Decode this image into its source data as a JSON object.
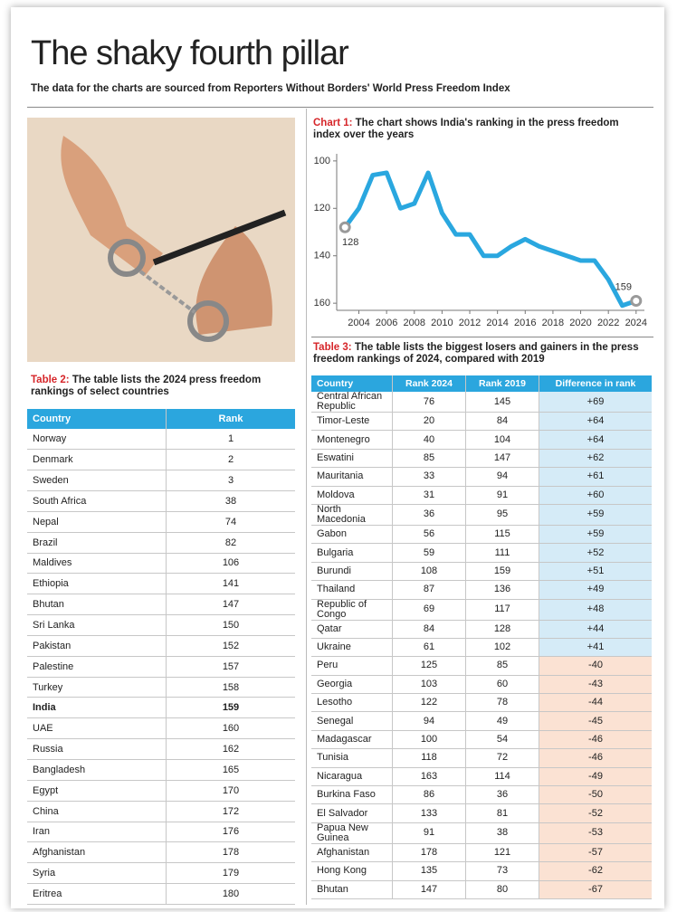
{
  "header": {
    "title": "The shaky fourth pillar",
    "subtitle": "The data for the charts are sourced from Reporters Without Borders' World Press Freedom Index"
  },
  "chart_data": {
    "type": "line",
    "label": "Chart 1:",
    "title": "The chart shows India's ranking in the press freedom index over the years",
    "x": [
      2003,
      2004,
      2005,
      2006,
      2007,
      2008,
      2009,
      2010,
      2011,
      2012,
      2013,
      2014,
      2015,
      2016,
      2017,
      2018,
      2019,
      2020,
      2021,
      2022,
      2023,
      2024
    ],
    "values": [
      128,
      120,
      106,
      105,
      120,
      118,
      105,
      122,
      131,
      131,
      140,
      140,
      136,
      133,
      136,
      138,
      140,
      142,
      142,
      150,
      161,
      159
    ],
    "color": "#2aa7df",
    "marker_color": "#9a9a9a",
    "xlim": [
      2002.4,
      2024.6
    ],
    "ylim": [
      163,
      97
    ],
    "xticks": [
      2004,
      2006,
      2008,
      2010,
      2012,
      2014,
      2016,
      2018,
      2020,
      2022,
      2024
    ],
    "yticks": [
      100,
      120,
      140,
      160
    ],
    "grid": false
  },
  "table2": {
    "label": "Table 2:",
    "caption": "The table lists the 2024 press freedom rankings of select countries",
    "columns": [
      "Country",
      "Rank"
    ],
    "highlight_row": 13,
    "rows": [
      [
        "Norway",
        1
      ],
      [
        "Denmark",
        2
      ],
      [
        "Sweden",
        3
      ],
      [
        "South Africa",
        38
      ],
      [
        "Nepal",
        74
      ],
      [
        "Brazil",
        82
      ],
      [
        "Maldives",
        106
      ],
      [
        "Ethiopia",
        141
      ],
      [
        "Bhutan",
        147
      ],
      [
        "Sri Lanka",
        150
      ],
      [
        "Pakistan",
        152
      ],
      [
        "Palestine",
        157
      ],
      [
        "Turkey",
        158
      ],
      [
        "India",
        159
      ],
      [
        "UAE",
        160
      ],
      [
        "Russia",
        162
      ],
      [
        "Bangladesh",
        165
      ],
      [
        "Egypt",
        170
      ],
      [
        "China",
        172
      ],
      [
        "Iran",
        176
      ],
      [
        "Afghanistan",
        178
      ],
      [
        "Syria",
        179
      ],
      [
        "Eritrea",
        180
      ]
    ]
  },
  "table3": {
    "label": "Table 3:",
    "caption": "The table lists the biggest losers and gainers in the press freedom rankings of 2024, compared with 2019",
    "columns": [
      "Country",
      "Rank 2024",
      "Rank 2019",
      "Difference in rank"
    ],
    "rows": [
      [
        "Central African Republic",
        76,
        145,
        "+69"
      ],
      [
        "Timor-Leste",
        20,
        84,
        "+64"
      ],
      [
        "Montenegro",
        40,
        104,
        "+64"
      ],
      [
        "Eswatini",
        85,
        147,
        "+62"
      ],
      [
        "Mauritania",
        33,
        94,
        "+61"
      ],
      [
        "Moldova",
        31,
        91,
        "+60"
      ],
      [
        "North Macedonia",
        36,
        95,
        "+59"
      ],
      [
        "Gabon",
        56,
        115,
        "+59"
      ],
      [
        "Bulgaria",
        59,
        111,
        "+52"
      ],
      [
        "Burundi",
        108,
        159,
        "+51"
      ],
      [
        "Thailand",
        87,
        136,
        "+49"
      ],
      [
        "Republic of Congo",
        69,
        117,
        "+48"
      ],
      [
        "Qatar",
        84,
        128,
        "+44"
      ],
      [
        "Ukraine",
        61,
        102,
        "+41"
      ],
      [
        "Peru",
        125,
        85,
        "-40"
      ],
      [
        "Georgia",
        103,
        60,
        "-43"
      ],
      [
        "Lesotho",
        122,
        78,
        "-44"
      ],
      [
        "Senegal",
        94,
        49,
        "-45"
      ],
      [
        "Madagascar",
        100,
        54,
        "-46"
      ],
      [
        "Tunisia",
        118,
        72,
        "-46"
      ],
      [
        "Nicaragua",
        163,
        114,
        "-49"
      ],
      [
        "Burkina Faso",
        86,
        36,
        "-50"
      ],
      [
        "El Salvador",
        133,
        81,
        "-52"
      ],
      [
        "Papua New Guinea",
        91,
        38,
        "-53"
      ],
      [
        "Afghanistan",
        178,
        121,
        "-57"
      ],
      [
        "Hong Kong",
        135,
        73,
        "-62"
      ],
      [
        "Bhutan",
        147,
        80,
        "-67"
      ]
    ]
  }
}
